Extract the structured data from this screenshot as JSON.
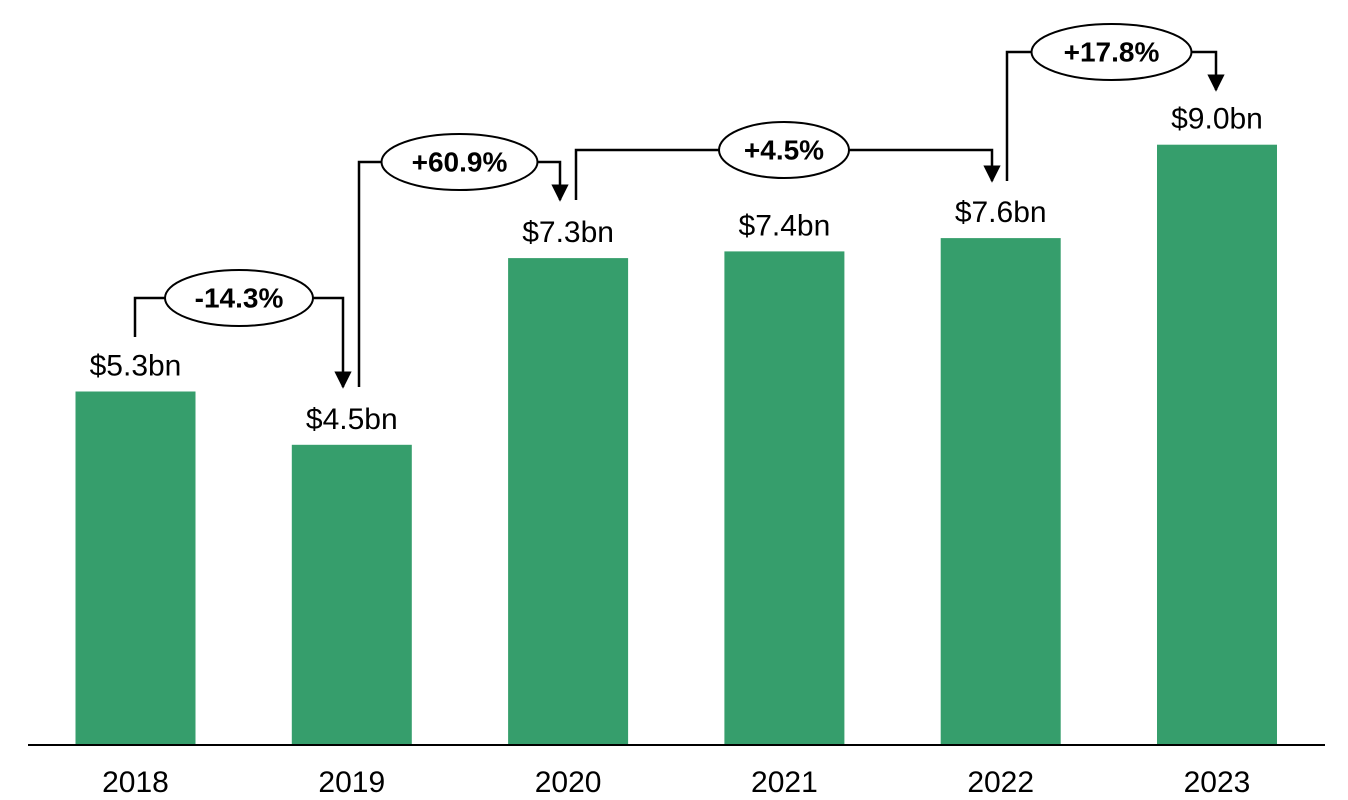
{
  "chart_data": {
    "type": "bar",
    "categories": [
      "2018",
      "2019",
      "2020",
      "2021",
      "2022",
      "2023"
    ],
    "values": [
      5.3,
      4.5,
      7.3,
      7.4,
      7.6,
      9.0
    ],
    "data_labels": [
      "$5.3bn",
      "$4.5bn",
      "$7.3bn",
      "$7.4bn",
      "$7.6bn",
      "$9.0bn"
    ],
    "bar_color": "#369e6c",
    "axis_color": "#000000",
    "ylim": [
      0,
      10
    ],
    "grid": false,
    "title": "",
    "xlabel": "",
    "ylabel": "",
    "annotations": [
      {
        "from": "2018",
        "to": "2019",
        "label": "-14.3%"
      },
      {
        "from": "2019",
        "to": "2020",
        "label": "+60.9%"
      },
      {
        "from": "2020",
        "to": "2022",
        "label": "+4.5%"
      },
      {
        "from": "2022",
        "to": "2023",
        "label": "+17.8%"
      }
    ]
  }
}
